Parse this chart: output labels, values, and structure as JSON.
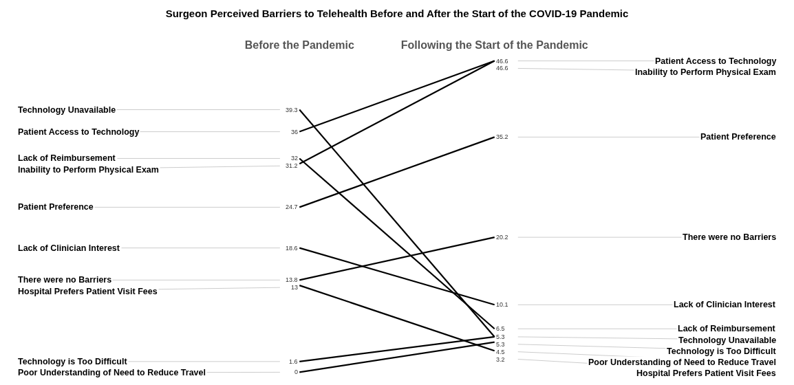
{
  "chart_data": {
    "type": "line",
    "title": "Surgeon Perceived Barriers to Telehealth Before and After the Start of the COVID-19 Pandemic",
    "categories": [
      "Before the Pandemic",
      "Following the Start of the Pandemic"
    ],
    "data_labels": true,
    "legend": false,
    "marker": "none",
    "line_style": "solid",
    "series": [
      {
        "name": "Technology Unavailable",
        "color": "#000000",
        "values": [
          39.3,
          5.3
        ]
      },
      {
        "name": "Patient Access to Technology",
        "color": "#000000",
        "values": [
          36,
          46.6
        ]
      },
      {
        "name": "Lack of Reimbursement",
        "color": "#000000",
        "values": [
          32,
          6.5
        ]
      },
      {
        "name": "Inability to Perform Physical Exam",
        "color": "#000000",
        "values": [
          31.2,
          46.6
        ]
      },
      {
        "name": "Patient Preference",
        "color": "#000000",
        "values": [
          24.7,
          35.2
        ]
      },
      {
        "name": "Lack of Clinician Interest",
        "color": "#000000",
        "values": [
          18.6,
          10.1
        ]
      },
      {
        "name": "There were no Barriers",
        "color": "#000000",
        "values": [
          13.8,
          20.2
        ]
      },
      {
        "name": "Hospital Prefers Patient Visit Fees",
        "color": "#000000",
        "values": [
          13,
          3.2
        ]
      },
      {
        "name": "Technology is Too Difficult",
        "color": "#000000",
        "values": [
          1.6,
          5.3
        ]
      },
      {
        "name": "Poor Understanding of Need to Reduce Travel",
        "color": "#000000",
        "values": [
          0,
          4.5
        ]
      }
    ]
  }
}
